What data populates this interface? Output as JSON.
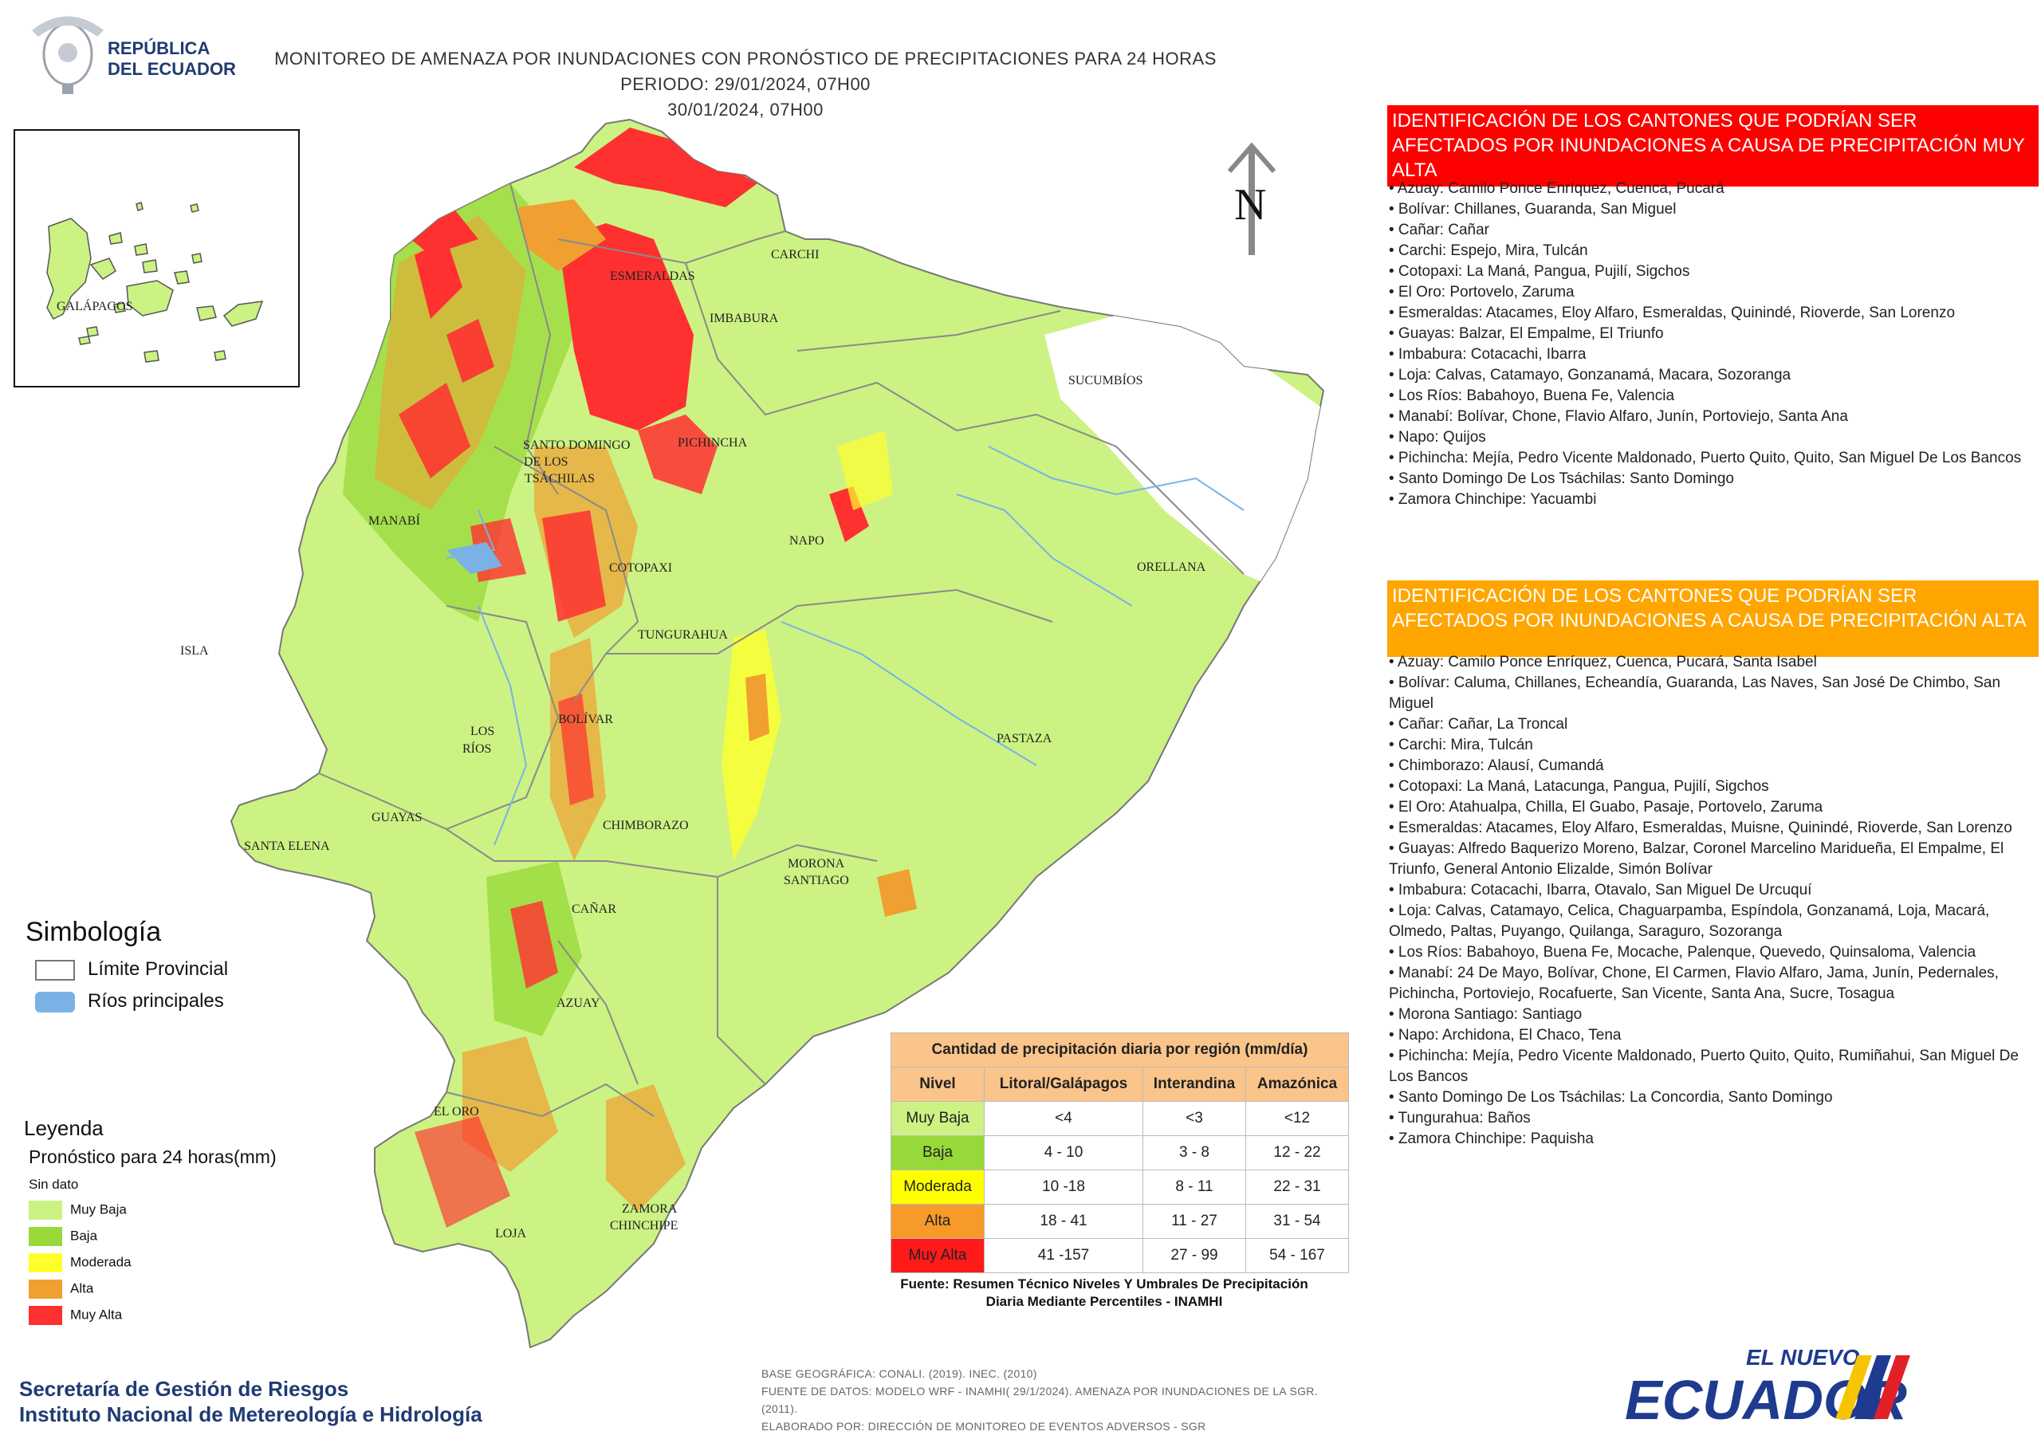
{
  "header": {
    "title_line1": "MONITOREO DE AMENAZA POR INUNDACIONES  CON PRONÓSTICO DE  PRECIPITACIONES PARA 24 HORAS  PERIODO: 29/01/2024, 07H00",
    "title_line2": "30/01/2024, 07H00",
    "logo_text_line1": "REPÚBLICA",
    "logo_text_line2": "DEL ECUADOR",
    "logo_icon": "coat-of-arms-icon"
  },
  "map": {
    "inset_label": "GALÁPAGOS",
    "north_label": "N",
    "provinces": [
      "ESMERALDAS",
      "CARCHI",
      "IMBABURA",
      "SUCUMBÍOS",
      "SANTO DOMINGO",
      "DE LOS",
      "TSÁCHILAS",
      "PICHINCHA",
      "MANABÍ",
      "NAPO",
      "ORELLANA",
      "COTOPAXI",
      "TUNGURAHUA",
      "ISLA",
      "LOS",
      "RÍOS",
      "BOLÍVAR",
      "PASTAZA",
      "GUAYAS",
      "SANTA ELENA",
      "CHIMBORAZO",
      "MORONA",
      "SANTIAGO",
      "CAÑAR",
      "AZUAY",
      "EL ORO",
      "ZAMORA",
      "CHINCHIPE",
      "LOJA"
    ],
    "colors": {
      "sin_dato": "#ffffff",
      "muy_baja": "#ccf283",
      "baja": "#98d93a",
      "moderada": "#ffff2e",
      "alta": "#f0a030",
      "muy_alta": "#ff3030",
      "river": "#7ab2e6",
      "border": "#8a8a8a"
    }
  },
  "panel_red": {
    "title": "IDENTIFICACIÓN DE LOS CANTONES QUE PODRÍAN SER AFECTADOS POR INUNDACIONES  A CAUSA DE PRECIPITACIÓN MUY ALTA",
    "items": [
      "• Azuay: Camilo Ponce Enríquez, Cuenca, Pucará",
      "• Bolívar: Chillanes, Guaranda, San Miguel",
      "• Cañar: Cañar",
      "• Carchi: Espejo, Mira, Tulcán",
      "• Cotopaxi: La Maná, Pangua, Pujilí, Sigchos",
      "• El Oro: Portovelo, Zaruma",
      "• Esmeraldas: Atacames, Eloy Alfaro, Esmeraldas, Quinindé, Rioverde, San Lorenzo",
      "• Guayas: Balzar, El Empalme, El Triunfo",
      "• Imbabura: Cotacachi, Ibarra",
      "• Loja: Calvas, Catamayo, Gonzanamá, Macara, Sozoranga",
      "• Los Ríos: Babahoyo, Buena Fe, Valencia",
      "• Manabí: Bolívar, Chone, Flavio Alfaro, Junín, Portoviejo, Santa Ana",
      "• Napo: Quijos",
      "• Pichincha: Mejía, Pedro Vicente Maldonado, Puerto Quito, Quito, San Miguel De Los Bancos",
      "• Santo Domingo De Los Tsáchilas: Santo Domingo",
      "• Zamora Chinchipe: Yacuambi"
    ]
  },
  "panel_orange": {
    "title": "IDENTIFICACIÓN DE LOS CANTONES QUE  PODRÍAN SER AFECTADOS POR INUNDACIONES  A CAUSA DE PRECIPITACIÓN  ALTA",
    "items": [
      "• Azuay: Camilo Ponce Enríquez, Cuenca, Pucará, Santa Isabel",
      "• Bolívar: Caluma, Chillanes, Echeandía, Guaranda, Las Naves, San José De Chimbo, San Miguel",
      "• Cañar: Cañar, La Troncal",
      "• Carchi: Mira, Tulcán",
      "• Chimborazo: Alausí, Cumandá",
      "• Cotopaxi: La Maná, Latacunga, Pangua, Pujilí, Sigchos",
      "• El Oro: Atahualpa, Chilla, El Guabo, Pasaje, Portovelo, Zaruma",
      "• Esmeraldas: Atacames, Eloy Alfaro, Esmeraldas, Muisne, Quinindé, Rioverde, San Lorenzo",
      "• Guayas: Alfredo Baquerizo Moreno, Balzar, Coronel Marcelino Maridueña, El Empalme, El Triunfo, General Antonio Elizalde, Simón Bolívar",
      "• Imbabura: Cotacachi, Ibarra, Otavalo, San Miguel De Urcuquí",
      "• Loja: Calvas, Catamayo, Celica, Chaguarpamba, Espíndola, Gonzanamá, Loja, Macará, Olmedo, Paltas, Puyango, Quilanga, Saraguro, Sozoranga",
      "• Los Ríos: Babahoyo, Buena Fe, Mocache, Palenque, Quevedo, Quinsaloma, Valencia",
      "• Manabí: 24 De Mayo, Bolívar, Chone, El Carmen, Flavio Alfaro, Jama, Junín, Pedernales, Pichincha, Portoviejo, Rocafuerte, San Vicente, Santa Ana, Sucre, Tosagua",
      "• Morona Santiago: Santiago",
      "• Napo: Archidona, El Chaco, Tena",
      "• Pichincha: Mejía, Pedro Vicente Maldonado, Puerto Quito, Quito, Rumiñahui, San Miguel De Los Bancos",
      "• Santo Domingo De Los Tsáchilas: La Concordia, Santo Domingo",
      "• Tungurahua: Baños",
      "• Zamora Chinchipe: Paquisha"
    ]
  },
  "simbologia": {
    "title": "Simbología",
    "items": [
      {
        "label": "Límite Provincial",
        "icon": "boundary-swatch-icon"
      },
      {
        "label": "Ríos principales",
        "icon": "river-swatch-icon"
      }
    ]
  },
  "leyenda": {
    "title": "Leyenda",
    "subtitle": "Pronóstico para 24 horas(mm)",
    "items": [
      {
        "label": "Sin dato",
        "color": "#ffffff"
      },
      {
        "label": "Muy Baja",
        "color": "#ccf283"
      },
      {
        "label": "Baja",
        "color": "#98d93a"
      },
      {
        "label": "Moderada",
        "color": "#ffff2e"
      },
      {
        "label": "Alta",
        "color": "#f0a030"
      },
      {
        "label": "Muy Alta",
        "color": "#ff3030"
      }
    ]
  },
  "table": {
    "title": "Cantidad de precipitación diaria por región (mm/día)",
    "headers": [
      "Nivel",
      "Litoral/Galápagos",
      "Interandina",
      "Amazónica"
    ],
    "rows": [
      {
        "nivel": "Muy Baja",
        "color": "#ccf283",
        "values": [
          "<4",
          "<3",
          "<12"
        ]
      },
      {
        "nivel": "Baja",
        "color": "#98d93a",
        "values": [
          "4 - 10",
          "3 - 8",
          "12 - 22"
        ]
      },
      {
        "nivel": "Moderada",
        "color": "#ffff00",
        "values": [
          "10 -18",
          "8 - 11",
          "22 - 31"
        ]
      },
      {
        "nivel": "Alta",
        "color": "#f79a2a",
        "values": [
          "18 - 41",
          "11 - 27",
          "31 - 54"
        ]
      },
      {
        "nivel": "Muy Alta",
        "color": "#ff1a1a",
        "values": [
          "41 -157",
          "27 - 99",
          "54 - 167"
        ]
      }
    ],
    "header_color": "#fbc48a",
    "source": "Fuente: Resumen Técnico Niveles Y Umbrales De Precipitación Diaria Mediante Percentiles - INAMHI"
  },
  "footer": {
    "org_line1": "Secretaría de Gestión de Riesgos",
    "org_line2": "Instituto Nacional de Metereología e Hidrología",
    "source_lines": [
      "BASE GEOGRÁFICA: CONALI. (2019). INEC. (2010)",
      "FUENTE DE DATOS: MODELO WRF - INAMHI( 29/1/2024).  AMENAZA POR INUNDACIONES DE LA SGR. (2011).",
      "ELABORADO POR: DIRECCIÓN DE MONITOREO DE EVENTOS ADVERSOS - SGR"
    ],
    "brand_line1": "EL NUEVO",
    "brand_line2": "ECUADOR"
  }
}
